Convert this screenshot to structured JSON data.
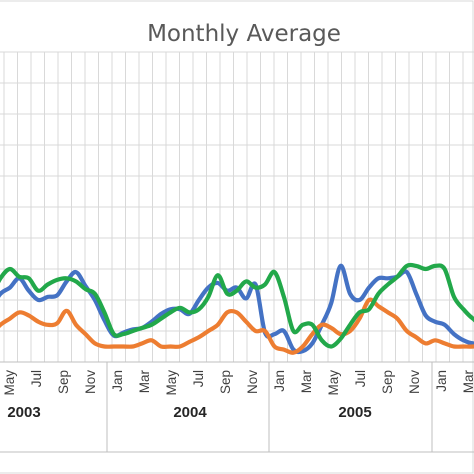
{
  "chart_data": {
    "type": "line",
    "title": "Monthly Average",
    "x_month_labels": [
      "May",
      "Jul",
      "Sep",
      "Nov",
      "Jan",
      "Mar",
      "May",
      "Jul",
      "Sep",
      "Nov",
      "Jan",
      "Mar",
      "May",
      "Jul",
      "Sep",
      "Nov",
      "Jan",
      "Mar"
    ],
    "year_labels": [
      "2003",
      "2004",
      "2005"
    ],
    "grid": true,
    "legend": "none",
    "colors": {
      "blue": "#4472C4",
      "orange": "#ED7D31",
      "green": "#22A84A",
      "grid": "#D9D9D9"
    },
    "series": [
      {
        "color": "#4472C4",
        "values": [
          0.175,
          0.22,
          0.24,
          0.27,
          0.23,
          0.2,
          0.21,
          0.215,
          0.26,
          0.29,
          0.245,
          0.2,
          0.135,
          0.085,
          0.095,
          0.105,
          0.11,
          0.13,
          0.155,
          0.17,
          0.17,
          0.155,
          0.2,
          0.24,
          0.255,
          0.23,
          0.24,
          0.205,
          0.25,
          0.095,
          0.09,
          0.1,
          0.04,
          0.035,
          0.06,
          0.12,
          0.19,
          0.31,
          0.22,
          0.2,
          0.24,
          0.27,
          0.27,
          0.275,
          0.29,
          0.22,
          0.15,
          0.13,
          0.12,
          0.09,
          0.07,
          0.06,
          0.065,
          0.08,
          0.12
        ]
      },
      {
        "color": "#ED7D31",
        "values": [
          0.09,
          0.12,
          0.14,
          0.16,
          0.15,
          0.13,
          0.12,
          0.125,
          0.165,
          0.12,
          0.09,
          0.06,
          0.05,
          0.05,
          0.05,
          0.05,
          0.06,
          0.07,
          0.05,
          0.05,
          0.05,
          0.065,
          0.08,
          0.1,
          0.12,
          0.16,
          0.16,
          0.13,
          0.1,
          0.1,
          0.05,
          0.04,
          0.03,
          0.05,
          0.09,
          0.12,
          0.11,
          0.09,
          0.1,
          0.14,
          0.2,
          0.18,
          0.16,
          0.14,
          0.1,
          0.08,
          0.06,
          0.07,
          0.06,
          0.05,
          0.05,
          0.05,
          0.055,
          0.05,
          0.05
        ]
      },
      {
        "color": "#22A84A",
        "values": [
          0.21,
          0.27,
          0.3,
          0.275,
          0.27,
          0.23,
          0.25,
          0.265,
          0.27,
          0.26,
          0.235,
          0.22,
          0.16,
          0.09,
          0.09,
          0.1,
          0.11,
          0.12,
          0.14,
          0.16,
          0.175,
          0.16,
          0.17,
          0.21,
          0.28,
          0.22,
          0.23,
          0.26,
          0.24,
          0.25,
          0.29,
          0.21,
          0.1,
          0.12,
          0.12,
          0.07,
          0.05,
          0.075,
          0.12,
          0.16,
          0.17,
          0.22,
          0.25,
          0.275,
          0.31,
          0.31,
          0.3,
          0.31,
          0.3,
          0.21,
          0.17,
          0.14,
          0.125,
          0.2,
          0.1,
          0.17
        ]
      }
    ]
  }
}
